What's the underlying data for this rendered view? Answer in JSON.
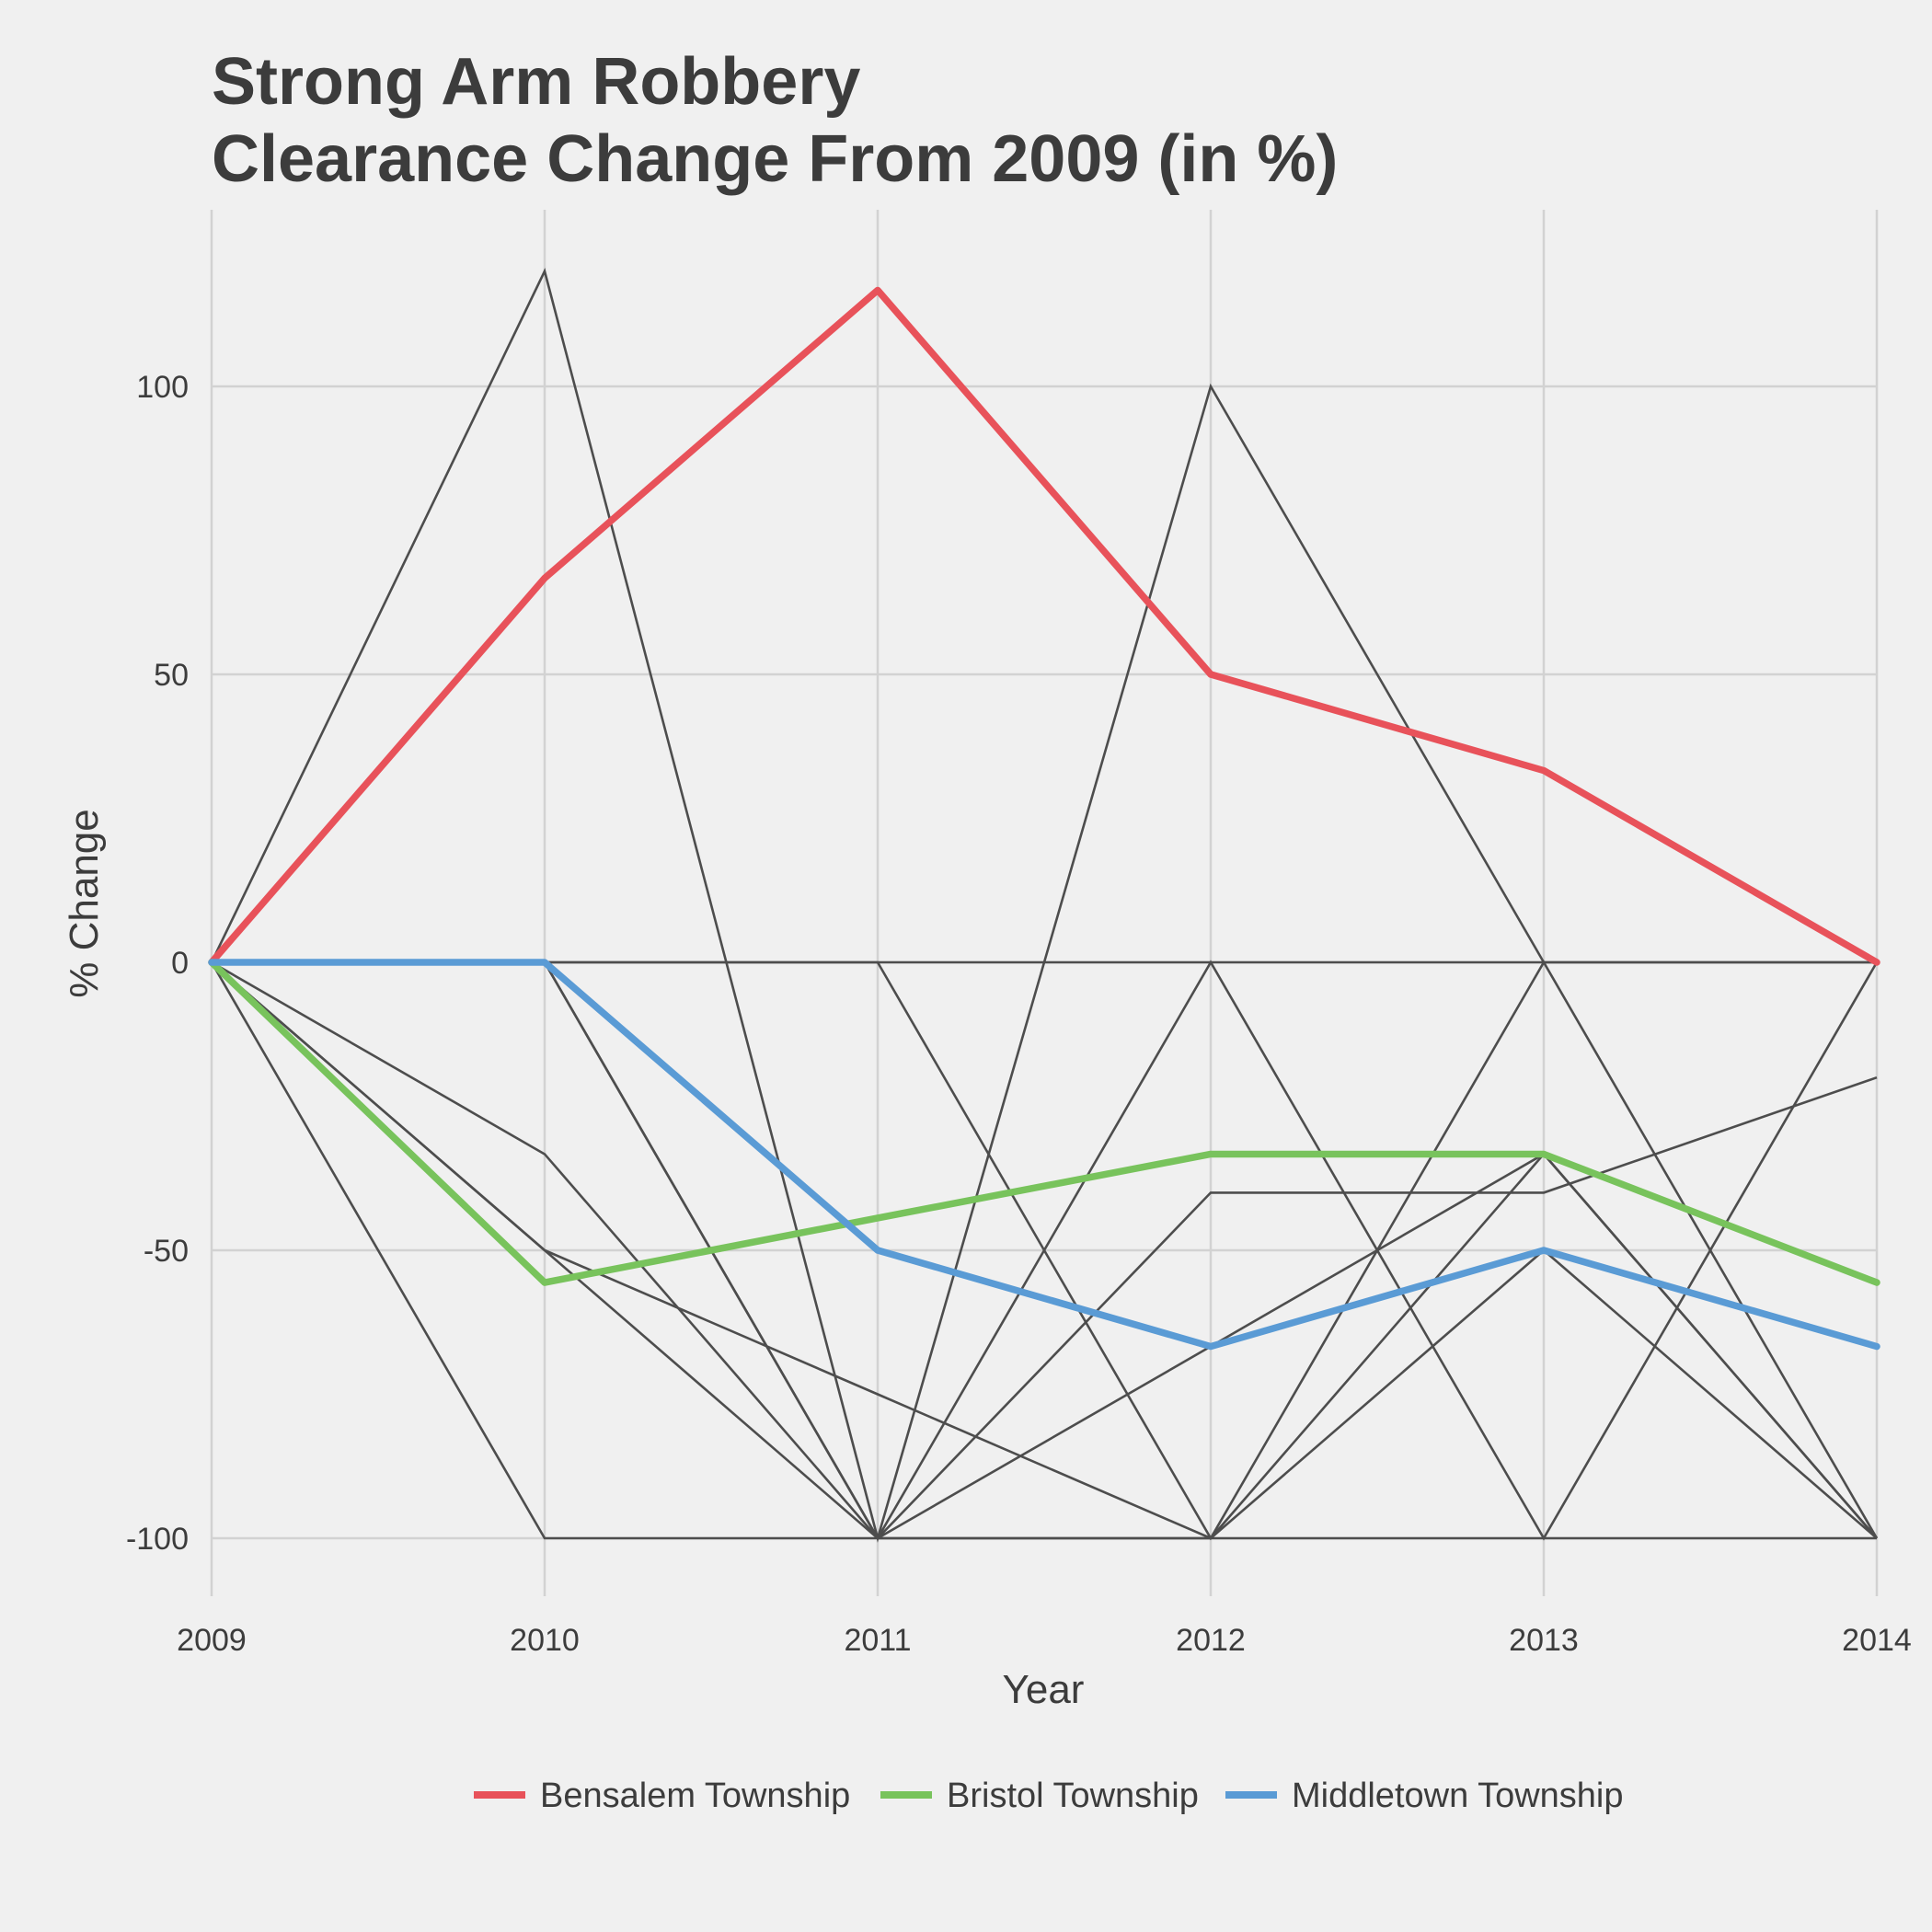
{
  "chart_data": {
    "type": "line",
    "title": [
      "Strong Arm Robbery",
      "Clearance Change From 2009 (in %)"
    ],
    "xlabel": "Year",
    "ylabel": "% Change",
    "x": [
      2009,
      2010,
      2011,
      2012,
      2013,
      2014
    ],
    "x_tick_labels": [
      "2009",
      "2010",
      "2011",
      "2012",
      "2013",
      "2014"
    ],
    "y_ticks": [
      -100,
      -50,
      0,
      50,
      100
    ],
    "y_tick_labels": [
      "-100",
      "-50",
      "0",
      "50",
      "100"
    ],
    "xlim": [
      2009,
      2014
    ],
    "ylim": [
      -110,
      130
    ],
    "grid": true,
    "legend_position": "bottom",
    "series": [
      {
        "name": "Bensalem Township",
        "color": "#e8525a",
        "highlight": true,
        "values": [
          0,
          66.7,
          116.7,
          50,
          33.3,
          0
        ]
      },
      {
        "name": "Bristol Township",
        "color": "#78c35c",
        "highlight": true,
        "values": [
          0,
          -55.6,
          -44.4,
          -33.3,
          -33.3,
          -55.6
        ]
      },
      {
        "name": "Middletown Township",
        "color": "#5a9bd5",
        "highlight": true,
        "values": [
          0,
          0,
          -50,
          -66.7,
          -50,
          -66.7
        ]
      }
    ],
    "other_series_color": "#4d4d4d",
    "other_series": [
      [
        0,
        120,
        -100,
        100,
        0,
        0
      ],
      [
        0,
        -100,
        -100,
        -100,
        -100,
        -100
      ],
      [
        0,
        -33.3,
        -100,
        -40,
        -40,
        -20
      ],
      [
        0,
        -50,
        -75,
        -100,
        -50,
        -100
      ],
      [
        0,
        0,
        -100,
        0,
        -100,
        0
      ],
      [
        0,
        0,
        0,
        -100,
        -33.3,
        -100
      ],
      [
        0,
        0,
        0,
        0,
        0,
        0
      ],
      [
        0,
        0,
        -100,
        -66.7,
        -33.3,
        -100
      ],
      [
        0,
        -50,
        -100,
        -100,
        0,
        -100
      ]
    ]
  }
}
